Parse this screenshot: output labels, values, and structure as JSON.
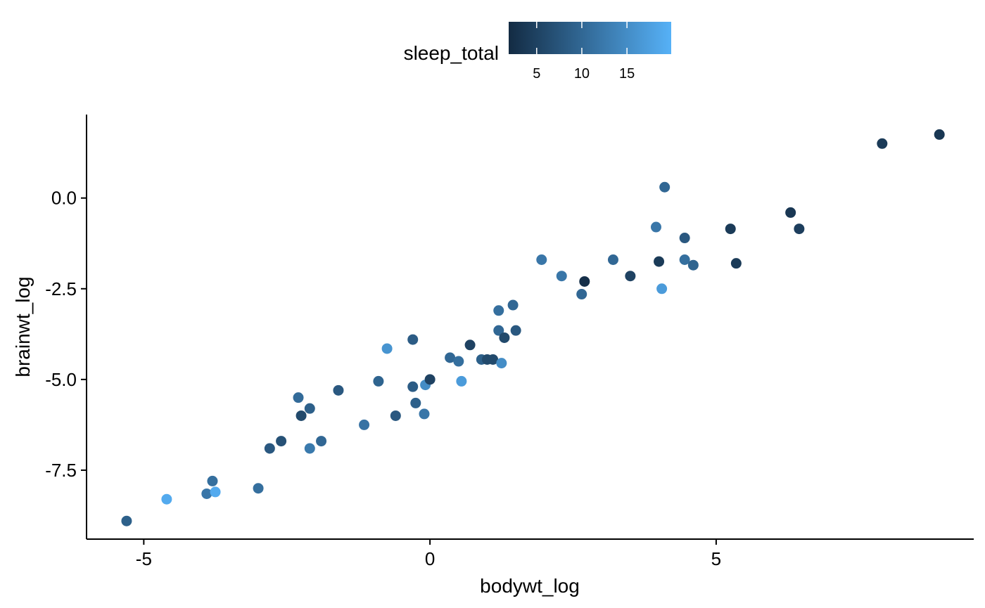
{
  "chart_data": {
    "type": "scatter",
    "title": "",
    "xlabel": "bodywt_log",
    "ylabel": "brainwt_log",
    "xlim": [
      -6.0,
      9.5
    ],
    "ylim": [
      -9.4,
      2.3
    ],
    "x_ticks": [
      -5,
      0,
      5
    ],
    "x_tick_labels": [
      "-5",
      "0",
      "5"
    ],
    "y_ticks": [
      0,
      -2.5,
      -5,
      -7.5
    ],
    "y_tick_labels": [
      "0.0",
      "-2.5",
      "-5.0",
      "-7.5"
    ],
    "grid": false,
    "legend": {
      "title": "sleep_total",
      "position": "top",
      "kind": "colorbar",
      "range": [
        1.9,
        19.9
      ],
      "ticks": [
        5,
        10,
        15
      ],
      "tick_labels": [
        "5",
        "10",
        "15"
      ],
      "color_low": "#132B43",
      "color_high": "#56B1F7"
    },
    "points": [
      {
        "x": -5.3,
        "y": -8.9,
        "sleep_total": 9.0
      },
      {
        "x": -4.6,
        "y": -8.3,
        "sleep_total": 19.0
      },
      {
        "x": -3.9,
        "y": -8.15,
        "sleep_total": 12.0
      },
      {
        "x": -3.8,
        "y": -7.8,
        "sleep_total": 11.0
      },
      {
        "x": -3.75,
        "y": -8.1,
        "sleep_total": 19.0
      },
      {
        "x": -3.0,
        "y": -8.0,
        "sleep_total": 11.0
      },
      {
        "x": -2.8,
        "y": -6.9,
        "sleep_total": 8.0
      },
      {
        "x": -2.6,
        "y": -6.7,
        "sleep_total": 7.0
      },
      {
        "x": -2.3,
        "y": -5.5,
        "sleep_total": 10.5
      },
      {
        "x": -2.25,
        "y": -6.0,
        "sleep_total": 6.0
      },
      {
        "x": -2.1,
        "y": -5.8,
        "sleep_total": 9.0
      },
      {
        "x": -2.1,
        "y": -6.9,
        "sleep_total": 12.5
      },
      {
        "x": -1.9,
        "y": -6.7,
        "sleep_total": 10.0
      },
      {
        "x": -1.6,
        "y": -5.3,
        "sleep_total": 8.0
      },
      {
        "x": -1.15,
        "y": -6.25,
        "sleep_total": 11.5
      },
      {
        "x": -0.9,
        "y": -5.05,
        "sleep_total": 9.5
      },
      {
        "x": -0.75,
        "y": -4.15,
        "sleep_total": 16.0
      },
      {
        "x": -0.6,
        "y": -6.0,
        "sleep_total": 8.0
      },
      {
        "x": -0.3,
        "y": -5.2,
        "sleep_total": 8.5
      },
      {
        "x": -0.3,
        "y": -3.9,
        "sleep_total": 8.5
      },
      {
        "x": -0.25,
        "y": -5.65,
        "sleep_total": 9.0
      },
      {
        "x": -0.1,
        "y": -5.95,
        "sleep_total": 12.0
      },
      {
        "x": -0.08,
        "y": -5.15,
        "sleep_total": 15.0
      },
      {
        "x": 0.0,
        "y": -5.0,
        "sleep_total": 5.0
      },
      {
        "x": 0.35,
        "y": -4.4,
        "sleep_total": 10.0
      },
      {
        "x": 0.5,
        "y": -4.5,
        "sleep_total": 11.0
      },
      {
        "x": 0.55,
        "y": -5.05,
        "sleep_total": 17.0
      },
      {
        "x": 0.7,
        "y": -4.05,
        "sleep_total": 5.0
      },
      {
        "x": 0.9,
        "y": -4.45,
        "sleep_total": 9.0
      },
      {
        "x": 1.0,
        "y": -4.45,
        "sleep_total": 6.0
      },
      {
        "x": 1.1,
        "y": -4.45,
        "sleep_total": 6.0
      },
      {
        "x": 1.2,
        "y": -3.65,
        "sleep_total": 10.0
      },
      {
        "x": 1.2,
        "y": -3.1,
        "sleep_total": 11.0
      },
      {
        "x": 1.25,
        "y": -4.55,
        "sleep_total": 15.0
      },
      {
        "x": 1.3,
        "y": -3.85,
        "sleep_total": 6.0
      },
      {
        "x": 1.45,
        "y": -2.95,
        "sleep_total": 10.0
      },
      {
        "x": 1.5,
        "y": -3.65,
        "sleep_total": 8.0
      },
      {
        "x": 1.95,
        "y": -1.7,
        "sleep_total": 12.0
      },
      {
        "x": 2.3,
        "y": -2.15,
        "sleep_total": 12.0
      },
      {
        "x": 2.65,
        "y": -2.65,
        "sleep_total": 10.0
      },
      {
        "x": 2.7,
        "y": -2.3,
        "sleep_total": 2.5
      },
      {
        "x": 3.2,
        "y": -1.7,
        "sleep_total": 10.0
      },
      {
        "x": 3.5,
        "y": -2.15,
        "sleep_total": 5.0
      },
      {
        "x": 3.95,
        "y": -0.8,
        "sleep_total": 12.0
      },
      {
        "x": 4.0,
        "y": -1.75,
        "sleep_total": 4.0
      },
      {
        "x": 4.05,
        "y": -2.5,
        "sleep_total": 17.0
      },
      {
        "x": 4.1,
        "y": 0.3,
        "sleep_total": 10.0
      },
      {
        "x": 4.45,
        "y": -1.1,
        "sleep_total": 8.0
      },
      {
        "x": 4.45,
        "y": -1.7,
        "sleep_total": 11.0
      },
      {
        "x": 4.6,
        "y": -1.85,
        "sleep_total": 9.5
      },
      {
        "x": 5.25,
        "y": -0.85,
        "sleep_total": 4.0
      },
      {
        "x": 5.35,
        "y": -1.8,
        "sleep_total": 4.0
      },
      {
        "x": 6.3,
        "y": -0.4,
        "sleep_total": 3.5
      },
      {
        "x": 6.45,
        "y": -0.85,
        "sleep_total": 4.5
      },
      {
        "x": 7.9,
        "y": 1.5,
        "sleep_total": 4.0
      },
      {
        "x": 8.9,
        "y": 1.75,
        "sleep_total": 3.5
      }
    ]
  }
}
